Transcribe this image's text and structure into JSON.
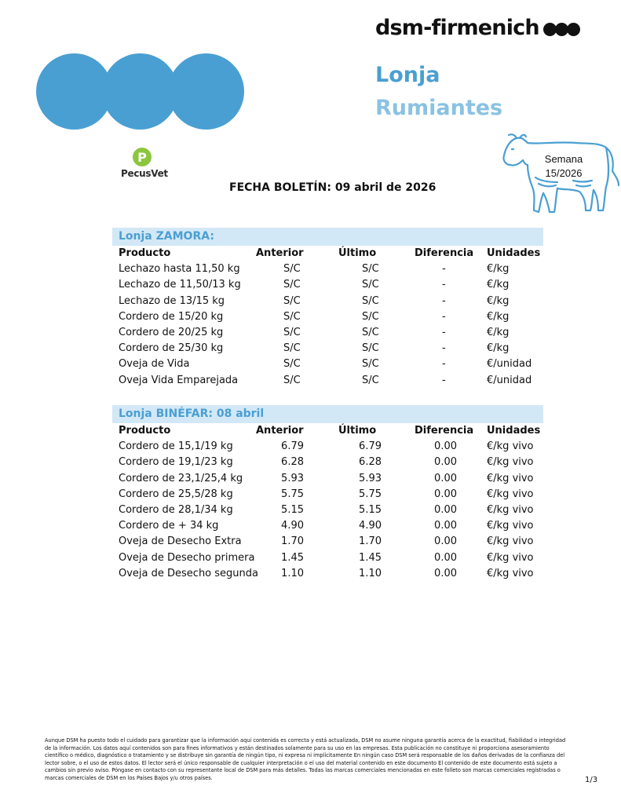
{
  "brand": {
    "name": "dsm-firmenich"
  },
  "header": {
    "title_line1": "Lonja",
    "title_line2": "Rumiantes"
  },
  "week": {
    "label": "Semana",
    "value": "15/2026"
  },
  "pecusvet": {
    "name": "PecusVet",
    "logo_letter": "P"
  },
  "bulletin": {
    "date_text": "FECHA BOLETÍN: 09 abril de 2026"
  },
  "columns": {
    "producto": "Producto",
    "anterior": "Anterior",
    "ultimo": "Último",
    "diferencia": "Diferencia",
    "unidades": "Unidades"
  },
  "zamora": {
    "title": "Lonja ZAMORA:",
    "rows": [
      {
        "producto": "Lechazo hasta 11,50 kg",
        "anterior": "S/C",
        "ultimo": "S/C",
        "diferencia": "-",
        "unidades": "€/kg"
      },
      {
        "producto": "Lechazo de 11,50/13 kg",
        "anterior": "S/C",
        "ultimo": "S/C",
        "diferencia": "-",
        "unidades": "€/kg"
      },
      {
        "producto": "Lechazo de 13/15 kg",
        "anterior": "S/C",
        "ultimo": "S/C",
        "diferencia": "-",
        "unidades": "€/kg"
      },
      {
        "producto": "Cordero de 15/20 kg",
        "anterior": "S/C",
        "ultimo": "S/C",
        "diferencia": "-",
        "unidades": "€/kg"
      },
      {
        "producto": "Cordero de 20/25 kg",
        "anterior": "S/C",
        "ultimo": "S/C",
        "diferencia": "-",
        "unidades": "€/kg"
      },
      {
        "producto": "Cordero de 25/30 kg",
        "anterior": "S/C",
        "ultimo": "S/C",
        "diferencia": "-",
        "unidades": "€/kg"
      },
      {
        "producto": "Oveja de Vida",
        "anterior": "S/C",
        "ultimo": "S/C",
        "diferencia": "-",
        "unidades": "€/unidad"
      },
      {
        "producto": "Oveja Vida Emparejada",
        "anterior": "S/C",
        "ultimo": "S/C",
        "diferencia": "-",
        "unidades": "€/unidad"
      }
    ]
  },
  "binefar": {
    "title": "Lonja BINÉFAR: 08 abril",
    "rows": [
      {
        "producto": "Cordero de 15,1/19 kg",
        "anterior": "6.79",
        "ultimo": "6.79",
        "diferencia": "0.00",
        "unidades": "€/kg vivo"
      },
      {
        "producto": "Cordero de 19,1/23 kg",
        "anterior": "6.28",
        "ultimo": "6.28",
        "diferencia": "0.00",
        "unidades": "€/kg vivo"
      },
      {
        "producto": "Cordero de 23,1/25,4 kg",
        "anterior": "5.93",
        "ultimo": "5.93",
        "diferencia": "0.00",
        "unidades": "€/kg vivo"
      },
      {
        "producto": "Cordero de 25,5/28 kg",
        "anterior": "5.75",
        "ultimo": "5.75",
        "diferencia": "0.00",
        "unidades": "€/kg vivo"
      },
      {
        "producto": "Cordero de 28,1/34 kg",
        "anterior": "5.15",
        "ultimo": "5.15",
        "diferencia": "0.00",
        "unidades": "€/kg vivo"
      },
      {
        "producto": "Cordero de + 34 kg",
        "anterior": "4.90",
        "ultimo": "4.90",
        "diferencia": "0.00",
        "unidades": "€/kg vivo"
      },
      {
        "producto": "Oveja de Desecho Extra",
        "anterior": "1.70",
        "ultimo": "1.70",
        "diferencia": "0.00",
        "unidades": "€/kg vivo"
      },
      {
        "producto": "Oveja de Desecho primera",
        "anterior": "1.45",
        "ultimo": "1.45",
        "diferencia": "0.00",
        "unidades": "€/kg vivo"
      },
      {
        "producto": "Oveja de Desecho segunda",
        "anterior": "1.10",
        "ultimo": "1.10",
        "diferencia": "0.00",
        "unidades": "€/kg vivo"
      }
    ]
  },
  "footer": {
    "disclaimer": "Aunque DSM ha puesto todo el cuidado para garantizar que la información aquí contenida es correcta y está actualizada, DSM no asume ninguna garantía acerca de la exactitud, fiabilidad o integridad de la información. Los datos aquí contenidos son para fines informativos y están destinados solamente para su uso en las empresas. Esta publicación no constituye ni proporciona asesoramiento científico o médico, diagnóstico o tratamiento y se distribuye sin garantía de ningún tipo, ni expresa ni implícitamente En ningún caso DSM será responsable de los daños derivados de la confianza del lector sobre, o el uso de estos datos. El lector será el único responsable de cualquier interpretación o el uso del material contenido en este documento El contenido de este documento está sujeto a cambios sin previo aviso. Póngase en contacto con su representante local de DSM para más detalles. Todas las marcas comerciales mencionadas en este folleto son marcas comerciales registradas o marcas comerciales de DSM en los Países Bajos y/u otros países.",
    "page": "1/3"
  },
  "colors": {
    "accent": "#4a9fd2",
    "accent_light": "#8ac2e2",
    "section_bg": "#d3e8f6",
    "pecus_green": "#8cc63f"
  }
}
